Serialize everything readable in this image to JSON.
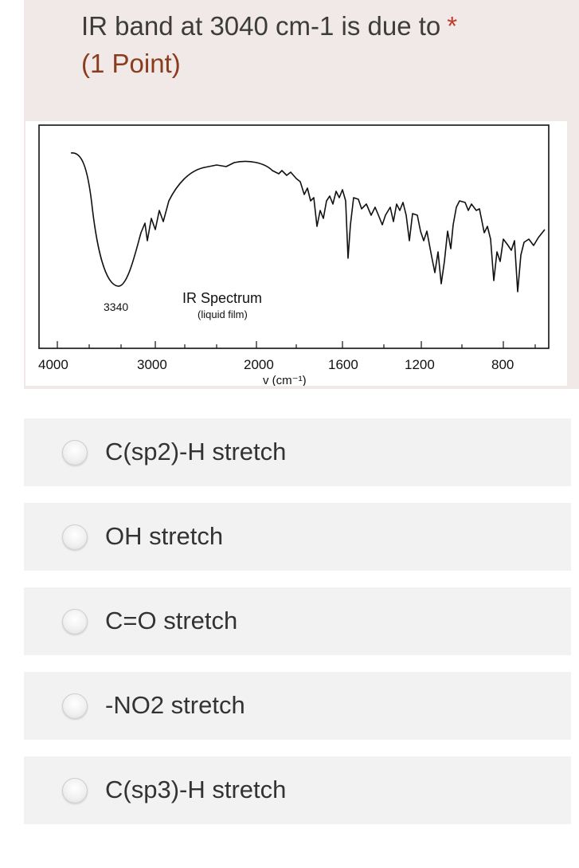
{
  "question": {
    "title": "IR band at 3040 cm-1 is due to",
    "required_mark": "*",
    "points": "(1 Point)"
  },
  "spectrum": {
    "title": "IR Spectrum",
    "subtitle": "(liquid film)",
    "peak_label": "3340",
    "xlabel": "v (cm⁻¹)",
    "x_ticks": [
      "4000",
      "3000",
      "2000",
      "1600",
      "1200",
      "800"
    ]
  },
  "options": [
    {
      "label": "C(sp2)-H stretch"
    },
    {
      "label": "OH stretch"
    },
    {
      "label": "C=O stretch"
    },
    {
      "label": "-NO2 stretch"
    },
    {
      "label": "C(sp3)-H stretch"
    }
  ],
  "colors": {
    "card_bg": "#f1e9e7",
    "points_text": "#8a3d1e",
    "required_star": "#c0392b",
    "option_bg": "#f2f2f2"
  }
}
